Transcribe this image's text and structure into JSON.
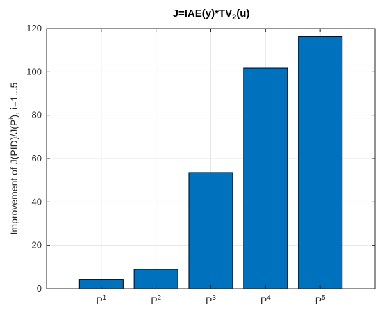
{
  "chart_data": {
    "type": "bar",
    "title": {
      "pre": "J=IAE(y)*TV",
      "sub": "2",
      "post": "(u)"
    },
    "ylabel": {
      "pre": "Improvement of J(PID)/J(P",
      "sup": "i",
      "post": "), i=1...5"
    },
    "categories": [
      {
        "base": "P",
        "sup": "1"
      },
      {
        "base": "P",
        "sup": "2"
      },
      {
        "base": "P",
        "sup": "3"
      },
      {
        "base": "P",
        "sup": "4"
      },
      {
        "base": "P",
        "sup": "5"
      }
    ],
    "values": [
      4.3,
      9.0,
      53.6,
      101.7,
      116.3
    ],
    "ylim": [
      0,
      120
    ],
    "yticks": [
      "0",
      "20",
      "40",
      "60",
      "80",
      "100",
      "120"
    ],
    "grid": true,
    "colors": {
      "bar": "#0072BD",
      "bar_edge": "#000000",
      "grid": "#e6e6e6",
      "axis": "#262626"
    }
  }
}
